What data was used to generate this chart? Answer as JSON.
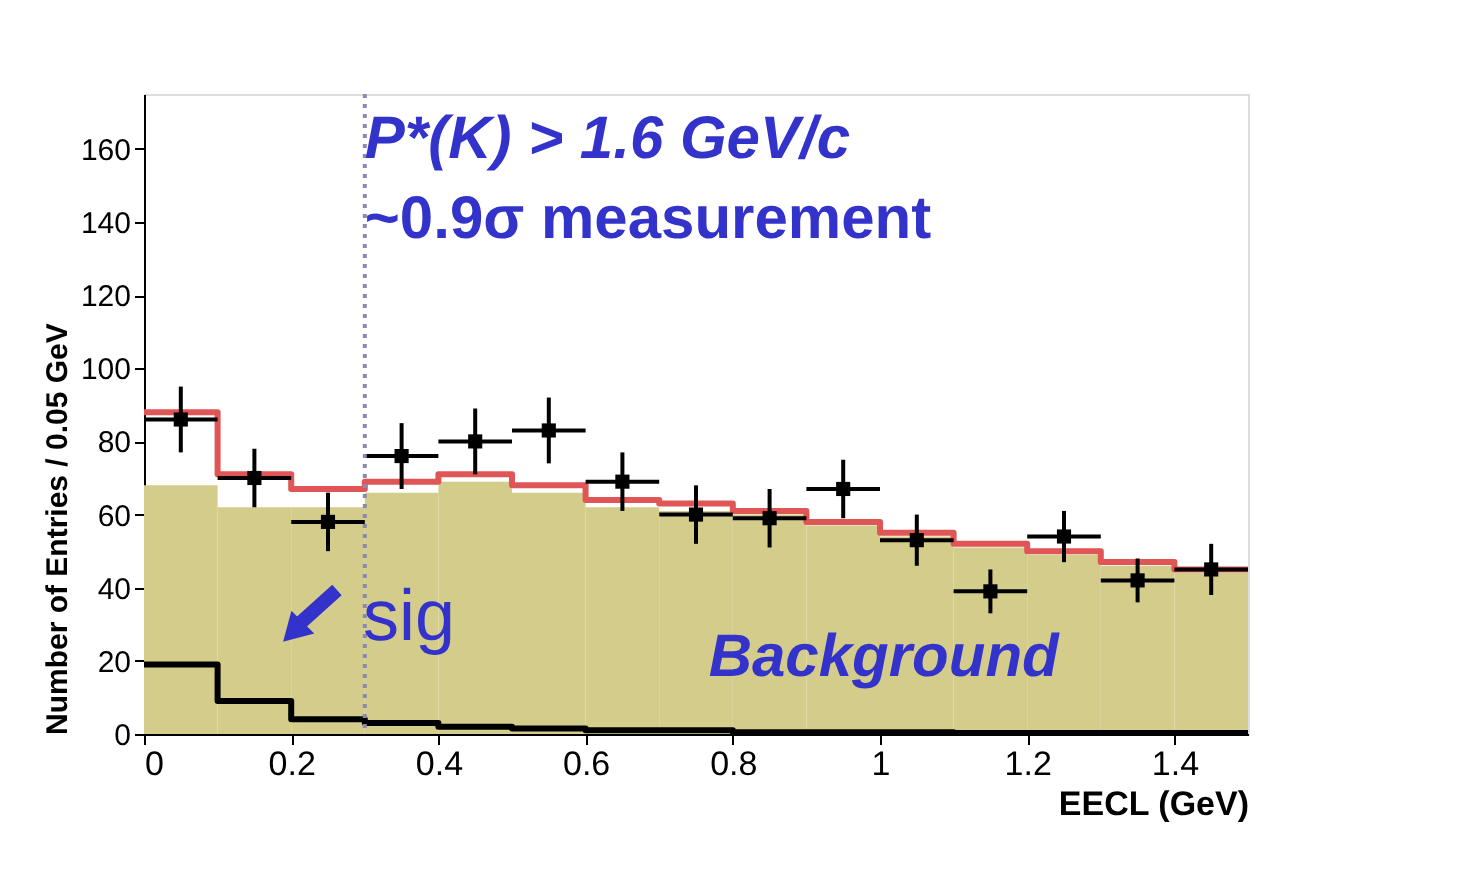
{
  "chart_data": {
    "type": "histogram",
    "xlabel": "EECL (GeV)",
    "ylabel": "Number of Entries / 0.05 GeV",
    "bins": [
      0,
      0.1,
      0.2,
      0.3,
      0.4,
      0.5,
      0.6,
      0.7,
      0.8,
      0.9,
      1.0,
      1.1,
      1.2,
      1.3,
      1.4,
      1.5
    ],
    "series": [
      {
        "type": "histogram",
        "color": "#d4cc8a",
        "values": [
          68,
          62,
          62,
          66,
          69,
          66,
          62,
          61,
          60,
          57,
          54,
          51,
          49,
          46,
          44
        ]
      },
      {
        "type": "step",
        "color": "#e05555",
        "x": [
          0,
          0.1,
          0.2,
          0.3,
          0.4,
          0.5,
          0.6,
          0.7,
          0.8,
          0.9,
          1.0,
          1.1,
          1.2,
          1.3,
          1.4,
          1.5
        ],
        "values": [
          88,
          71,
          67,
          69,
          71,
          68,
          64,
          63,
          61,
          58,
          55,
          52,
          50,
          47,
          45,
          45
        ]
      },
      {
        "type": "step",
        "color": "#000000",
        "x": [
          0,
          0.1,
          0.2,
          0.3,
          0.4,
          0.5,
          0.6,
          0.7,
          0.8,
          0.9,
          1.0,
          1.1,
          1.2,
          1.3,
          1.4,
          1.5
        ],
        "values": [
          19,
          9,
          4,
          3,
          2,
          1.5,
          1,
          1,
          0.5,
          0.5,
          0.5,
          0.3,
          0.3,
          0.3,
          0.3,
          0.3
        ]
      },
      {
        "type": "scatter",
        "color": "#000000",
        "marker": "square",
        "x": [
          0.05,
          0.15,
          0.25,
          0.35,
          0.45,
          0.55,
          0.65,
          0.75,
          0.85,
          0.95,
          1.05,
          1.15,
          1.25,
          1.35,
          1.45
        ],
        "values": [
          86,
          70,
          58,
          76,
          80,
          83,
          69,
          60,
          59,
          67,
          53,
          39,
          54,
          42,
          45
        ],
        "errors": [
          9,
          8,
          8,
          9,
          9,
          9,
          8,
          8,
          8,
          8,
          7,
          6,
          7,
          6,
          7
        ],
        "xerrors": [
          0.05,
          0.05,
          0.05,
          0.05,
          0.05,
          0.05,
          0.05,
          0.05,
          0.05,
          0.05,
          0.05,
          0.05,
          0.05,
          0.05,
          0.05
        ]
      }
    ],
    "xlim": [
      0,
      1.5
    ],
    "xticks": [
      0,
      0.2,
      0.4,
      0.6,
      0.8,
      1,
      1.2,
      1.4
    ],
    "ylim": [
      0,
      175
    ],
    "yticks": [
      0,
      20,
      40,
      60,
      80,
      100,
      120,
      140,
      160
    ],
    "ref_lines": [
      {
        "axis": "x",
        "value": 0.3,
        "color": "#8a8ab0",
        "line_style": "dotted"
      }
    ],
    "annotations": [
      "P*(K) > 1.6 GeV/c",
      "~0.9σ measurement",
      "sig",
      "Background"
    ]
  }
}
